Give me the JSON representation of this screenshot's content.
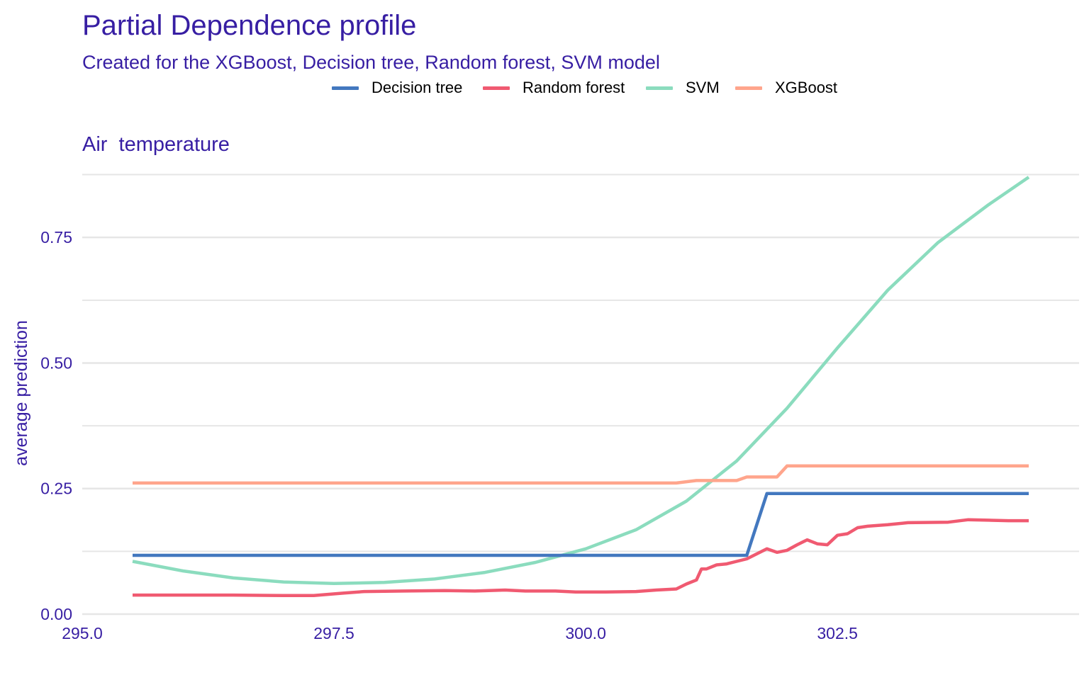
{
  "title": "Partial Dependence profile",
  "subtitle": "Created for the XGBoost, Decision tree, Random forest, SVM model",
  "panel_title": "Air  temperature",
  "legend": [
    {
      "name": "Decision tree",
      "color": "#4378bf"
    },
    {
      "name": "Random forest",
      "color": "#f05a71"
    },
    {
      "name": "SVM",
      "color": "#8bdcbe"
    },
    {
      "name": "XGBoost",
      "color": "#ffa58c"
    }
  ],
  "chart_data": {
    "type": "line",
    "title": "Partial Dependence profile",
    "subtitle": "Created for the XGBoost, Decision tree, Random forest, SVM model",
    "panel": "Air  temperature",
    "xlabel": "",
    "ylabel": "average prediction",
    "xlim": [
      295.0,
      304.9
    ],
    "ylim": [
      0.0,
      0.88
    ],
    "x_ticks": [
      "295.0",
      "297.5",
      "300.0",
      "302.5"
    ],
    "x_tick_values": [
      295.0,
      297.5,
      300.0,
      302.5
    ],
    "y_ticks": [
      "0.00",
      "0.25",
      "0.50",
      "0.75"
    ],
    "y_tick_values": [
      0.0,
      0.25,
      0.5,
      0.75
    ],
    "y_minor_gridlines": [
      0.125,
      0.375,
      0.625,
      0.875
    ],
    "grid": true,
    "legend_position": "top",
    "series": [
      {
        "name": "Decision tree",
        "color": "#4378bf",
        "points": [
          [
            295.5,
            0.117
          ],
          [
            301.6,
            0.117
          ],
          [
            301.8,
            0.24
          ],
          [
            304.4,
            0.24
          ]
        ]
      },
      {
        "name": "Random forest",
        "color": "#f05a71",
        "points": [
          [
            295.5,
            0.038
          ],
          [
            296.0,
            0.038
          ],
          [
            296.5,
            0.038
          ],
          [
            297.0,
            0.037
          ],
          [
            297.3,
            0.037
          ],
          [
            297.6,
            0.042
          ],
          [
            297.8,
            0.045
          ],
          [
            298.2,
            0.046
          ],
          [
            298.6,
            0.047
          ],
          [
            298.9,
            0.046
          ],
          [
            299.2,
            0.048
          ],
          [
            299.4,
            0.046
          ],
          [
            299.7,
            0.046
          ],
          [
            299.9,
            0.044
          ],
          [
            300.2,
            0.044
          ],
          [
            300.5,
            0.045
          ],
          [
            300.7,
            0.048
          ],
          [
            300.9,
            0.05
          ],
          [
            301.0,
            0.06
          ],
          [
            301.1,
            0.068
          ],
          [
            301.15,
            0.09
          ],
          [
            301.2,
            0.09
          ],
          [
            301.3,
            0.098
          ],
          [
            301.4,
            0.1
          ],
          [
            301.5,
            0.105
          ],
          [
            301.6,
            0.11
          ],
          [
            301.7,
            0.12
          ],
          [
            301.8,
            0.13
          ],
          [
            301.9,
            0.123
          ],
          [
            302.0,
            0.127
          ],
          [
            302.1,
            0.138
          ],
          [
            302.2,
            0.148
          ],
          [
            302.3,
            0.14
          ],
          [
            302.4,
            0.138
          ],
          [
            302.5,
            0.157
          ],
          [
            302.6,
            0.16
          ],
          [
            302.7,
            0.172
          ],
          [
            302.8,
            0.175
          ],
          [
            303.0,
            0.178
          ],
          [
            303.2,
            0.182
          ],
          [
            303.6,
            0.183
          ],
          [
            303.8,
            0.188
          ],
          [
            304.0,
            0.187
          ],
          [
            304.2,
            0.186
          ],
          [
            304.4,
            0.186
          ]
        ]
      },
      {
        "name": "SVM",
        "color": "#8bdcbe",
        "points": [
          [
            295.5,
            0.105
          ],
          [
            296.0,
            0.086
          ],
          [
            296.5,
            0.072
          ],
          [
            297.0,
            0.064
          ],
          [
            297.5,
            0.061
          ],
          [
            298.0,
            0.063
          ],
          [
            298.5,
            0.07
          ],
          [
            299.0,
            0.083
          ],
          [
            299.5,
            0.103
          ],
          [
            300.0,
            0.13
          ],
          [
            300.5,
            0.168
          ],
          [
            301.0,
            0.225
          ],
          [
            301.5,
            0.305
          ],
          [
            302.0,
            0.41
          ],
          [
            302.5,
            0.53
          ],
          [
            303.0,
            0.645
          ],
          [
            303.5,
            0.74
          ],
          [
            304.0,
            0.815
          ],
          [
            304.4,
            0.87
          ]
        ]
      },
      {
        "name": "XGBoost",
        "color": "#ffa58c",
        "points": [
          [
            295.5,
            0.261
          ],
          [
            300.9,
            0.261
          ],
          [
            301.1,
            0.266
          ],
          [
            301.5,
            0.266
          ],
          [
            301.6,
            0.273
          ],
          [
            301.9,
            0.273
          ],
          [
            302.0,
            0.295
          ],
          [
            304.4,
            0.295
          ]
        ]
      }
    ]
  }
}
